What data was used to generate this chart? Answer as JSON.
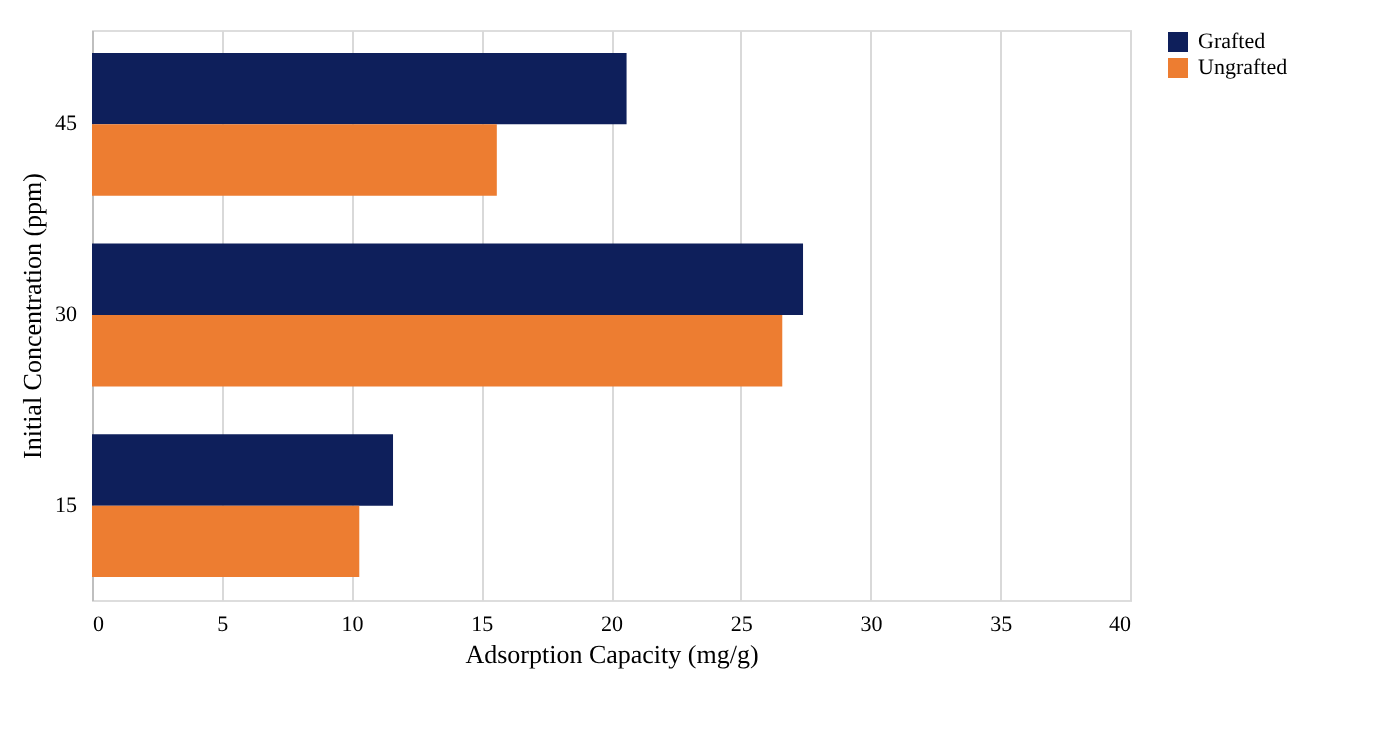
{
  "chart_data": {
    "type": "bar",
    "orientation": "horizontal",
    "xlabel": "Adsorption Capacity (mg/g)",
    "ylabel": "Initial Concentration (ppm)",
    "categories": [
      "45",
      "30",
      "15"
    ],
    "series": [
      {
        "name": "Grafted",
        "color": "#0e1f5b",
        "values": [
          20.6,
          27.4,
          11.6
        ]
      },
      {
        "name": "Ungrafted",
        "color": "#ed7d31",
        "values": [
          15.6,
          26.6,
          10.3
        ]
      }
    ],
    "xlim": [
      0,
      40
    ],
    "xticks": [
      0,
      5,
      10,
      15,
      20,
      25,
      30,
      35,
      40
    ],
    "grid": "x",
    "legend": "right"
  }
}
